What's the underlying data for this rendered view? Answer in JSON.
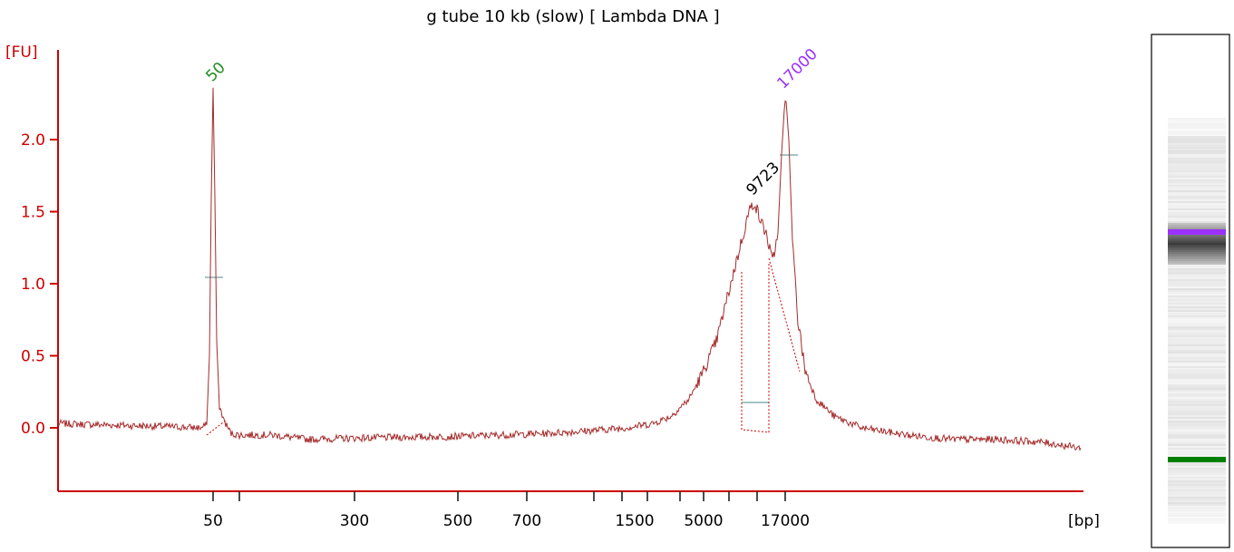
{
  "chart_data": {
    "type": "line",
    "title": "g tube 10 kb (slow)  [ Lambda DNA ]",
    "ylabel": "[FU]",
    "xlabel": "[bp]",
    "ylim": [
      -0.45,
      2.65
    ],
    "y_ticks": [
      "0.0",
      "0.5",
      "1.0",
      "1.5",
      "2.0"
    ],
    "x_tick_labels": [
      "50",
      "300",
      "500",
      "700",
      "1500",
      "5000",
      "17000"
    ],
    "grid": false,
    "colors": {
      "axis": "#cc0000",
      "trace": "#a52a2a",
      "lower_marker": "#008000",
      "upper_marker": "#9b30ff",
      "level_line": "#4a8a88"
    },
    "peak_labels": [
      {
        "text": "50",
        "color": "#228b22",
        "fu": 2.36
      },
      {
        "text": "9723",
        "color": "#000000",
        "fu": 1.57
      },
      {
        "text": "17000",
        "color": "#9b30ff",
        "fu": 2.31
      }
    ],
    "series": [
      {
        "values": [
          [
            50,
            0.0
          ],
          [
            50,
            -0.03
          ],
          [
            50,
            2.36
          ],
          [
            50,
            0.02
          ],
          [
            50,
            -0.05
          ],
          [
            300,
            -0.06
          ],
          [
            500,
            -0.04
          ],
          [
            700,
            -0.03
          ],
          [
            1500,
            0.0
          ],
          [
            5000,
            0.4
          ],
          [
            9723,
            1.57
          ],
          [
            17000,
            2.31
          ],
          [
            17000,
            0.03
          ],
          [
            17000,
            -0.14
          ]
        ]
      }
    ]
  },
  "gel": {
    "lower_marker_color": "#008000",
    "upper_marker_color": "#9b30ff"
  }
}
